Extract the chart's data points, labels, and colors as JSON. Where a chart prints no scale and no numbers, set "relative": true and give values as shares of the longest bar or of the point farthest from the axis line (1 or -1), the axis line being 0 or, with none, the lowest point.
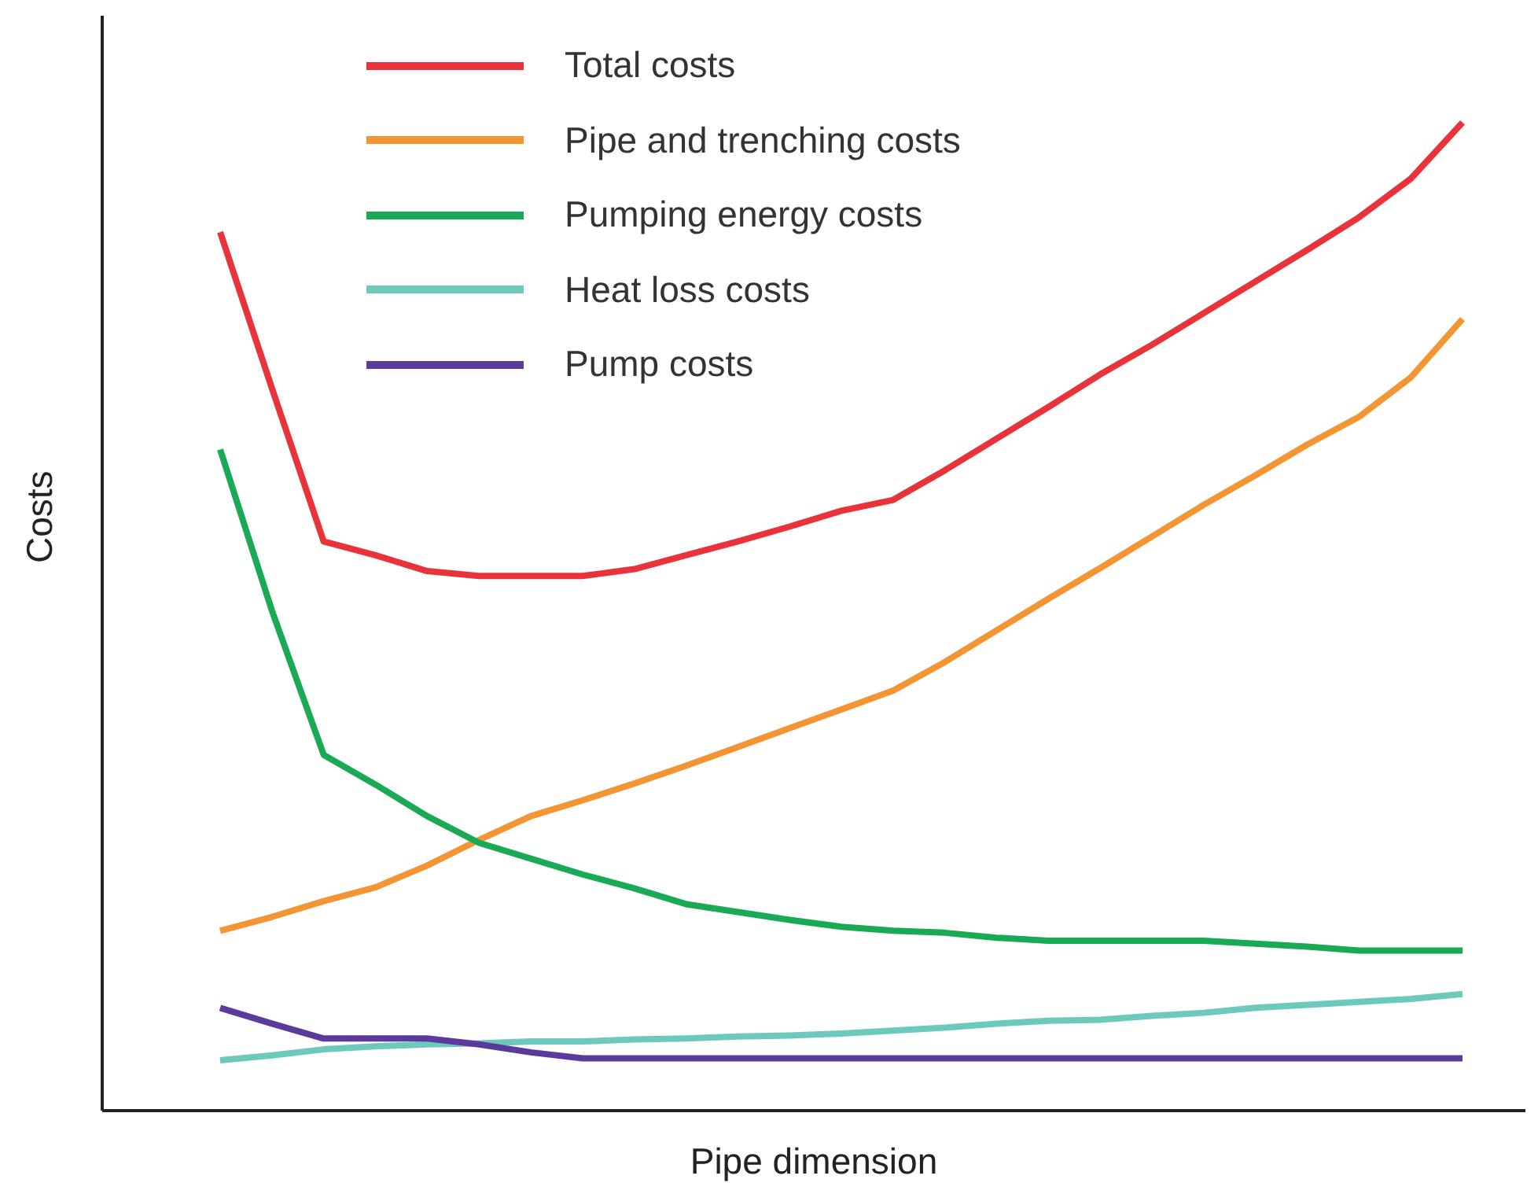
{
  "chart_data": {
    "type": "line",
    "relative": true,
    "xlabel": "Pipe dimension",
    "ylabel": "Costs",
    "legend": "top",
    "grid": false,
    "marker": "none",
    "line_style": "solid",
    "categories": [
      null,
      null,
      null,
      null,
      null,
      null,
      null,
      null,
      null,
      null,
      null,
      null,
      null,
      null,
      null,
      null,
      null,
      null,
      null,
      null,
      null,
      null,
      null,
      null,
      null
    ],
    "series": [
      {
        "name": "Total costs",
        "color": "#e8333a",
        "values": [
          0.889,
          0.731,
          0.576,
          0.562,
          0.546,
          0.541,
          0.541,
          0.541,
          0.548,
          0.562,
          0.576,
          0.591,
          0.607,
          0.618,
          0.648,
          0.68,
          0.712,
          0.745,
          0.775,
          0.807,
          0.839,
          0.871,
          0.904,
          0.943,
          1
        ]
      },
      {
        "name": "Pipe and trenching costs",
        "color": "#f39533",
        "values": [
          0.182,
          0.196,
          0.212,
          0.226,
          0.248,
          0.274,
          0.298,
          0.314,
          0.331,
          0.349,
          0.368,
          0.387,
          0.406,
          0.425,
          0.454,
          0.486,
          0.518,
          0.549,
          0.581,
          0.613,
          0.643,
          0.674,
          0.702,
          0.742,
          0.801
        ]
      },
      {
        "name": "Pumping energy costs",
        "color": "#1aaa55",
        "values": [
          0.669,
          0.506,
          0.36,
          0.33,
          0.298,
          0.271,
          0.255,
          0.239,
          0.225,
          0.209,
          0.201,
          0.193,
          0.186,
          0.182,
          0.18,
          0.175,
          0.172,
          0.172,
          0.172,
          0.172,
          0.169,
          0.166,
          0.162,
          0.162,
          0.162
        ]
      },
      {
        "name": "Heat loss costs",
        "color": "#6cc9bb",
        "values": [
          0.051,
          0.056,
          0.062,
          0.065,
          0.067,
          0.068,
          0.07,
          0.07,
          0.072,
          0.073,
          0.075,
          0.076,
          0.078,
          0.081,
          0.084,
          0.088,
          0.091,
          0.092,
          0.096,
          0.099,
          0.104,
          0.107,
          0.11,
          0.113,
          0.118
        ]
      },
      {
        "name": "Pump costs",
        "color": "#5b3a9b",
        "values": [
          0.104,
          0.088,
          0.073,
          0.073,
          0.073,
          0.067,
          0.059,
          0.053,
          0.053,
          0.053,
          0.053,
          0.053,
          0.053,
          0.053,
          0.053,
          0.053,
          0.053,
          0.053,
          0.053,
          0.053,
          0.053,
          0.053,
          0.053,
          0.053,
          0.053
        ]
      }
    ]
  }
}
